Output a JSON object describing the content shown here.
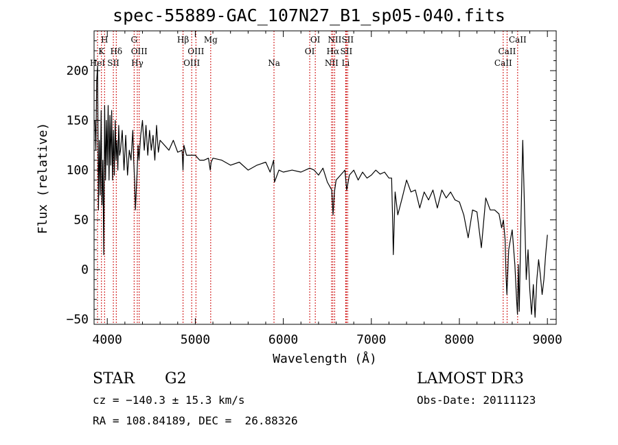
{
  "chart_data": {
    "type": "line",
    "title": "spec-55889-GAC_107N27_B1_sp05-040.fits",
    "xlabel": "Wavelength (Å)",
    "ylabel": "Flux (relative)",
    "xlim": [
      3850,
      9100
    ],
    "ylim": [
      -55,
      240
    ],
    "xticks": [
      4000,
      5000,
      6000,
      7000,
      8000,
      9000
    ],
    "yticks": [
      -50,
      0,
      50,
      100,
      150,
      200
    ],
    "series": [
      {
        "name": "flux",
        "x": [
          3860,
          3870,
          3880,
          3890,
          3900,
          3910,
          3920,
          3930,
          3940,
          3950,
          3960,
          3970,
          3980,
          3990,
          4000,
          4010,
          4020,
          4030,
          4040,
          4050,
          4060,
          4070,
          4080,
          4090,
          4100,
          4110,
          4120,
          4130,
          4140,
          4150,
          4170,
          4190,
          4210,
          4230,
          4250,
          4270,
          4290,
          4300,
          4310,
          4320,
          4330,
          4340,
          4350,
          4360,
          4380,
          4400,
          4420,
          4440,
          4460,
          4480,
          4500,
          4520,
          4540,
          4560,
          4580,
          4600,
          4650,
          4700,
          4750,
          4800,
          4850,
          4860,
          4870,
          4900,
          4950,
          5000,
          5050,
          5100,
          5150,
          5170,
          5180,
          5200,
          5300,
          5400,
          5500,
          5600,
          5700,
          5800,
          5850,
          5890,
          5900,
          5950,
          6000,
          6100,
          6200,
          6300,
          6350,
          6400,
          6450,
          6500,
          6550,
          6565,
          6580,
          6600,
          6650,
          6700,
          6720,
          6750,
          6800,
          6850,
          6900,
          6950,
          7000,
          7050,
          7100,
          7150,
          7200,
          7230,
          7240,
          7250,
          7270,
          7300,
          7350,
          7400,
          7450,
          7500,
          7550,
          7600,
          7650,
          7700,
          7750,
          7800,
          7850,
          7900,
          7950,
          8000,
          8050,
          8100,
          8150,
          8200,
          8250,
          8300,
          8350,
          8400,
          8450,
          8480,
          8500,
          8520,
          8530,
          8540,
          8560,
          8580,
          8600,
          8630,
          8650,
          8660,
          8670,
          8680,
          8700,
          8720,
          8740,
          8760,
          8780,
          8800,
          8820,
          8840,
          8860,
          8880,
          8900,
          8920,
          8940,
          8960,
          8980,
          9000
        ],
        "values": [
          150,
          120,
          190,
          205,
          60,
          130,
          75,
          160,
          65,
          110,
          15,
          165,
          90,
          150,
          105,
          165,
          90,
          155,
          105,
          160,
          90,
          140,
          95,
          150,
          110,
          130,
          100,
          145,
          115,
          120,
          140,
          100,
          135,
          95,
          120,
          110,
          140,
          110,
          90,
          60,
          80,
          100,
          125,
          110,
          135,
          150,
          120,
          145,
          115,
          140,
          120,
          135,
          110,
          145,
          118,
          130,
          125,
          120,
          130,
          118,
          120,
          100,
          125,
          115,
          115,
          115,
          110,
          110,
          112,
          100,
          108,
          112,
          110,
          105,
          108,
          100,
          105,
          108,
          98,
          110,
          88,
          100,
          98,
          100,
          98,
          102,
          100,
          95,
          102,
          88,
          80,
          55,
          78,
          90,
          95,
          100,
          80,
          95,
          100,
          90,
          98,
          92,
          95,
          100,
          96,
          98,
          92,
          92,
          55,
          15,
          78,
          55,
          72,
          90,
          78,
          80,
          62,
          78,
          70,
          80,
          62,
          80,
          72,
          78,
          70,
          68,
          55,
          32,
          60,
          58,
          22,
          72,
          60,
          60,
          56,
          42,
          50,
          30,
          -5,
          -25,
          20,
          30,
          40,
          5,
          -30,
          -45,
          5,
          -42,
          50,
          130,
          60,
          -10,
          20,
          -20,
          -45,
          -15,
          -48,
          -10,
          10,
          -5,
          -25,
          -10,
          15,
          35
        ]
      }
    ],
    "lines": [
      {
        "name": "HeI",
        "x": 3889,
        "label_row": 3
      },
      {
        "name": "K",
        "x": 3934,
        "label_row": 2
      },
      {
        "name": "H",
        "x": 3969,
        "label_row": 1
      },
      {
        "name": "SII",
        "x": 4069,
        "label_row": 3
      },
      {
        "name": "Hδ",
        "x": 4102,
        "label_row": 2
      },
      {
        "name": "G",
        "x": 4305,
        "label_row": 1
      },
      {
        "name": "Hγ",
        "x": 4341,
        "label_row": 3
      },
      {
        "name": "OIII",
        "x": 4363,
        "label_row": 2
      },
      {
        "name": "Hβ",
        "x": 4861,
        "label_row": 1
      },
      {
        "name": "OIII",
        "x": 4959,
        "label_row": 3
      },
      {
        "name": "OIII",
        "x": 5007,
        "label_row": 2
      },
      {
        "name": "Mg",
        "x": 5175,
        "label_row": 1
      },
      {
        "name": "Na",
        "x": 5894,
        "label_row": 3
      },
      {
        "name": "OI",
        "x": 6300,
        "label_row": 2
      },
      {
        "name": "OI",
        "x": 6363,
        "label_row": 1
      },
      {
        "name": "NII",
        "x": 6548,
        "label_row": 3
      },
      {
        "name": "Hα",
        "x": 6563,
        "label_row": 2
      },
      {
        "name": "NII",
        "x": 6583,
        "label_row": 1
      },
      {
        "name": "Li",
        "x": 6708,
        "label_row": 3
      },
      {
        "name": "SII",
        "x": 6716,
        "label_row": 2
      },
      {
        "name": "SII",
        "x": 6731,
        "label_row": 1
      },
      {
        "name": "CaII",
        "x": 8498,
        "label_row": 3
      },
      {
        "name": "CaII",
        "x": 8542,
        "label_row": 2
      },
      {
        "name": "CaII",
        "x": 8662,
        "label_row": 1
      }
    ],
    "line_color": "#cc0000"
  },
  "info": {
    "object_class": "STAR",
    "subclass": "G2",
    "survey": "LAMOST DR3",
    "cz": "cz = −140.3 ± 15.3 km/s",
    "obs_date": "Obs-Date: 20111123",
    "coords": "RA = 108.84189, DEC =  26.88326"
  }
}
